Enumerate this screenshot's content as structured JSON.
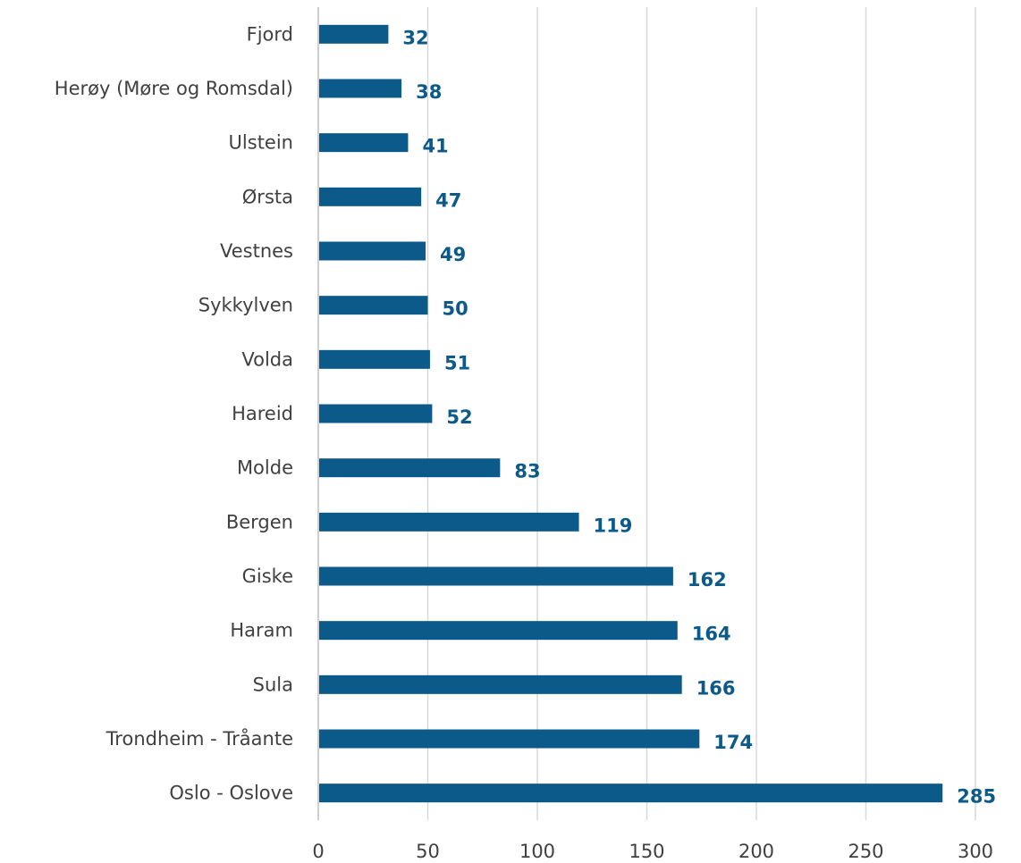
{
  "chart_data": {
    "type": "bar",
    "orientation": "horizontal",
    "categories": [
      "Fjord",
      "Herøy (Møre og Romsdal)",
      "Ulstein",
      "Ørsta",
      "Vestnes",
      "Sykkylven",
      "Volda",
      "Hareid",
      "Molde",
      "Bergen",
      "Giske",
      "Haram",
      "Sula",
      "Trondheim - Tråante",
      "Oslo - Oslove"
    ],
    "values": [
      32,
      38,
      41,
      47,
      49,
      50,
      51,
      52,
      83,
      119,
      162,
      164,
      166,
      174,
      285
    ],
    "data_labels": [
      "32",
      "38",
      "41",
      "47",
      "49",
      "50",
      "51",
      "52",
      "83",
      "119",
      "162",
      "164",
      "166",
      "174",
      "285"
    ],
    "x_ticks": [
      "0",
      "50",
      "100",
      "150",
      "200",
      "250",
      "300"
    ],
    "xlim": [
      0,
      300
    ],
    "grid": true,
    "legend": "none",
    "colors": {
      "bar": "#0b5a8a",
      "label": "#0b5a8a",
      "grid": "#d9d9d9",
      "text": "#404040"
    }
  }
}
